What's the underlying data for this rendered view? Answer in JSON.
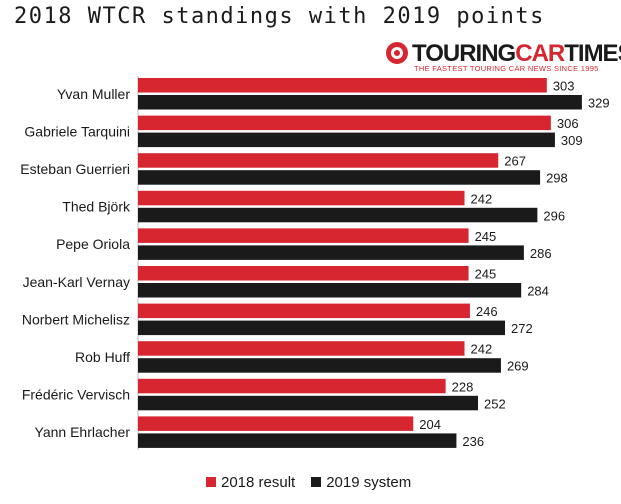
{
  "title": "2018 WTCR standings with 2019 points",
  "logo": {
    "word_part1": "TOURING",
    "word_part2": "CAR",
    "word_part3": "TIMES",
    "tagline": "THE FASTEST TOURING CAR NEWS SINCE 1995"
  },
  "colors": {
    "series_2018": "#d7262f",
    "series_2019": "#1a1a1a"
  },
  "chart_data": {
    "type": "bar",
    "orientation": "horizontal",
    "title": "2018 WTCR standings with 2019 points",
    "xlabel": "",
    "ylabel": "",
    "xlim": [
      0,
      335
    ],
    "grid": false,
    "legend_position": "bottom",
    "categories": [
      "Yvan Muller",
      "Gabriele Tarquini",
      "Esteban Guerrieri",
      "Thed Björk",
      "Pepe Oriola",
      "Jean-Karl Vernay",
      "Norbert Michelisz",
      "Rob Huff",
      "Frédéric Vervisch",
      "Yann Ehrlacher"
    ],
    "series": [
      {
        "name": "2018 result",
        "values": [
          303,
          306,
          267,
          242,
          245,
          245,
          246,
          242,
          228,
          204
        ]
      },
      {
        "name": "2019 system",
        "values": [
          329,
          309,
          298,
          296,
          286,
          284,
          272,
          269,
          252,
          236
        ]
      }
    ]
  }
}
